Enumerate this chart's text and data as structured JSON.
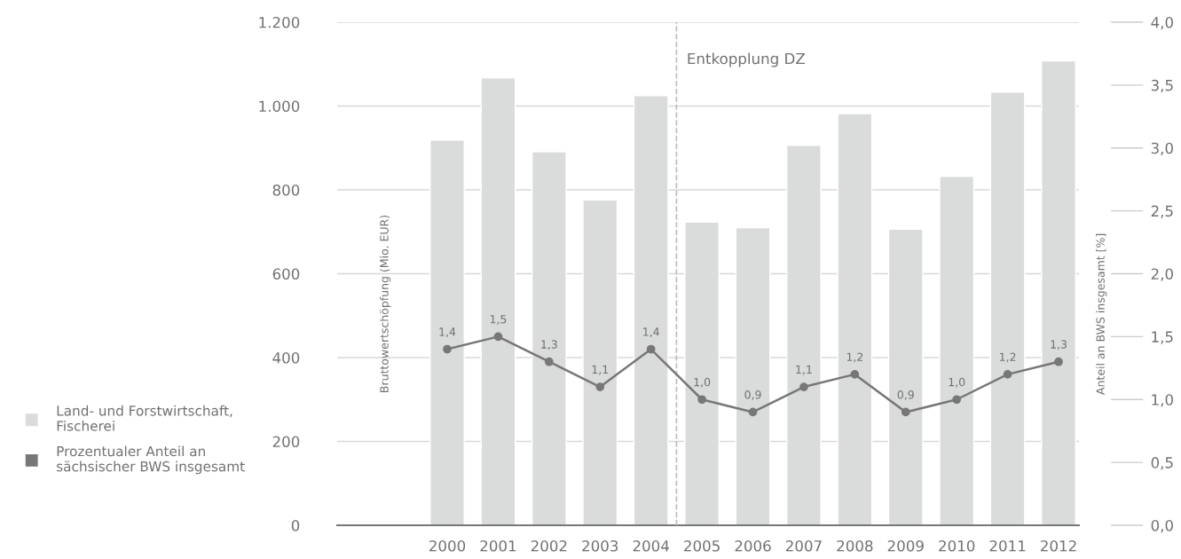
{
  "chart_data": {
    "type": "bar",
    "x": [
      2000,
      2001,
      2002,
      2003,
      2004,
      2005,
      2006,
      2007,
      2008,
      2009,
      2010,
      2011,
      2012
    ],
    "xlim": [
      1997.84,
      2012.4
    ],
    "xticks": [
      2000,
      2001,
      2002,
      2003,
      2004,
      2005,
      2006,
      2007,
      2008,
      2009,
      2010,
      2011,
      2012
    ],
    "series": [
      {
        "name": "Land- und Forstwirtschaft,\nFischerei",
        "color": "#dadbdb",
        "values": [
          919,
          1067,
          891,
          776,
          1025,
          723,
          710,
          906,
          982,
          706,
          832,
          1033,
          1108
        ]
      },
      {
        "name": "Prozentualer Anteil an\nsächsischer BWS insgesamt",
        "type": "line",
        "axis": "y2",
        "color": "#777777",
        "marker": "circle",
        "data_labels": true,
        "value_labels": [
          "1,4",
          "1,5",
          "1,3",
          "1,1",
          "1,4",
          "1,0",
          "0,9",
          "1,1",
          "1,2",
          "0,9",
          "1,0",
          "1,2",
          "1,3"
        ],
        "values": [
          1.4,
          1.5,
          1.3,
          1.1,
          1.4,
          1.0,
          0.9,
          1.1,
          1.2,
          0.9,
          1.0,
          1.2,
          1.3
        ]
      }
    ],
    "ylabel": "Bruttowertschöpfung (Mio. EUR)",
    "y2label": "Anteil an BWS insgesamt [%]",
    "ylim": [
      0,
      1200
    ],
    "yticks": [
      {
        "value": 0,
        "label": "0"
      },
      {
        "value": 200,
        "label": "200"
      },
      {
        "value": 400,
        "label": "400"
      },
      {
        "value": 600,
        "label": "600"
      },
      {
        "value": 800,
        "label": "800"
      },
      {
        "value": 1000,
        "label": "1.000"
      },
      {
        "value": 1200,
        "label": "1.200"
      }
    ],
    "y2lim": [
      0,
      4
    ],
    "y2ticks": [
      {
        "value": 0,
        "label": "0,0"
      },
      {
        "value": 0.5,
        "label": "0,5"
      },
      {
        "value": 1,
        "label": "1,0"
      },
      {
        "value": 1.5,
        "label": "1,5"
      },
      {
        "value": 2,
        "label": "2,0"
      },
      {
        "value": 2.5,
        "label": "2,5"
      },
      {
        "value": 3,
        "label": "3,0"
      },
      {
        "value": 3.5,
        "label": "3,5"
      },
      {
        "value": 4,
        "label": "4,0"
      }
    ],
    "ref_lines": [
      {
        "axis": "x",
        "value": 2004.5,
        "label": "Entkopplung DZ",
        "color": "#bbbbbb",
        "line_style": "dashed"
      }
    ],
    "grid": "y",
    "legend": "left"
  }
}
